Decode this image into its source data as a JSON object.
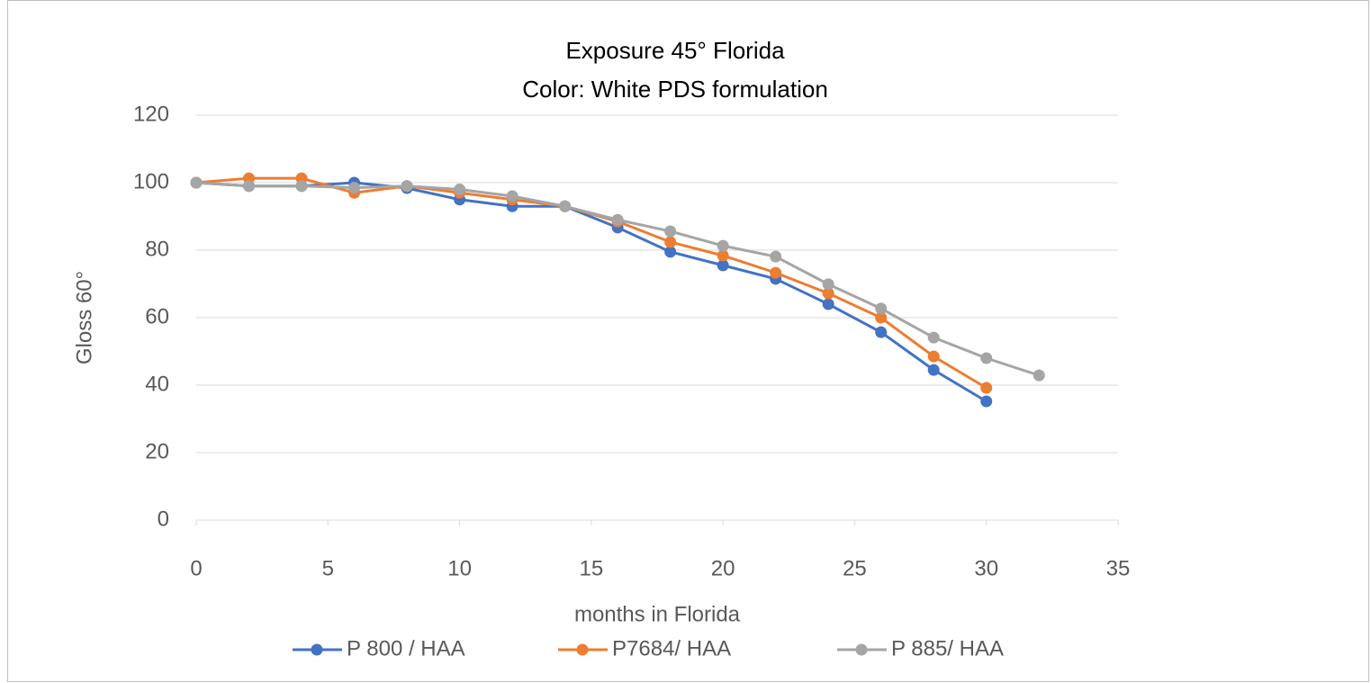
{
  "chart_data": {
    "type": "line",
    "title": "Exposure 45° Florida",
    "subtitle": "Color: White PDS formulation",
    "x_label": "months in Florida",
    "y_label": "Gloss 60°",
    "x": [
      0,
      2,
      4,
      6,
      8,
      10,
      12,
      14,
      16,
      18,
      20,
      22,
      24,
      26,
      28,
      30,
      32
    ],
    "series": [
      {
        "name": "P 800 / HAA",
        "color": "#4472c4",
        "values": [
          100,
          99,
          99,
          100,
          98.4,
          95,
          93,
          93,
          86.7,
          79.5,
          75.5,
          71.5,
          64,
          55.7,
          44.5,
          35.2,
          null
        ]
      },
      {
        "name": "P7684/ HAA",
        "color": "#ed7d31",
        "values": [
          100,
          101.3,
          101.3,
          97,
          99,
          97,
          95,
          93,
          88.5,
          82.4,
          78.4,
          73.3,
          67.2,
          60,
          48.5,
          39.2,
          null
        ]
      },
      {
        "name": "P 885/ HAA",
        "color": "#a5a5a5",
        "values": [
          100,
          99,
          99,
          98.5,
          99,
          98,
          96,
          93,
          89,
          85.6,
          81.3,
          78.1,
          69.9,
          62.7,
          54.1,
          48,
          42.9
        ]
      }
    ],
    "xlim": [
      0,
      35
    ],
    "xticks": [
      0,
      5,
      10,
      15,
      20,
      25,
      30,
      35
    ],
    "ylim": [
      0,
      120
    ],
    "yticks": [
      0,
      20,
      40,
      60,
      80,
      100,
      120
    ],
    "grid": true,
    "legend": "bottom"
  }
}
